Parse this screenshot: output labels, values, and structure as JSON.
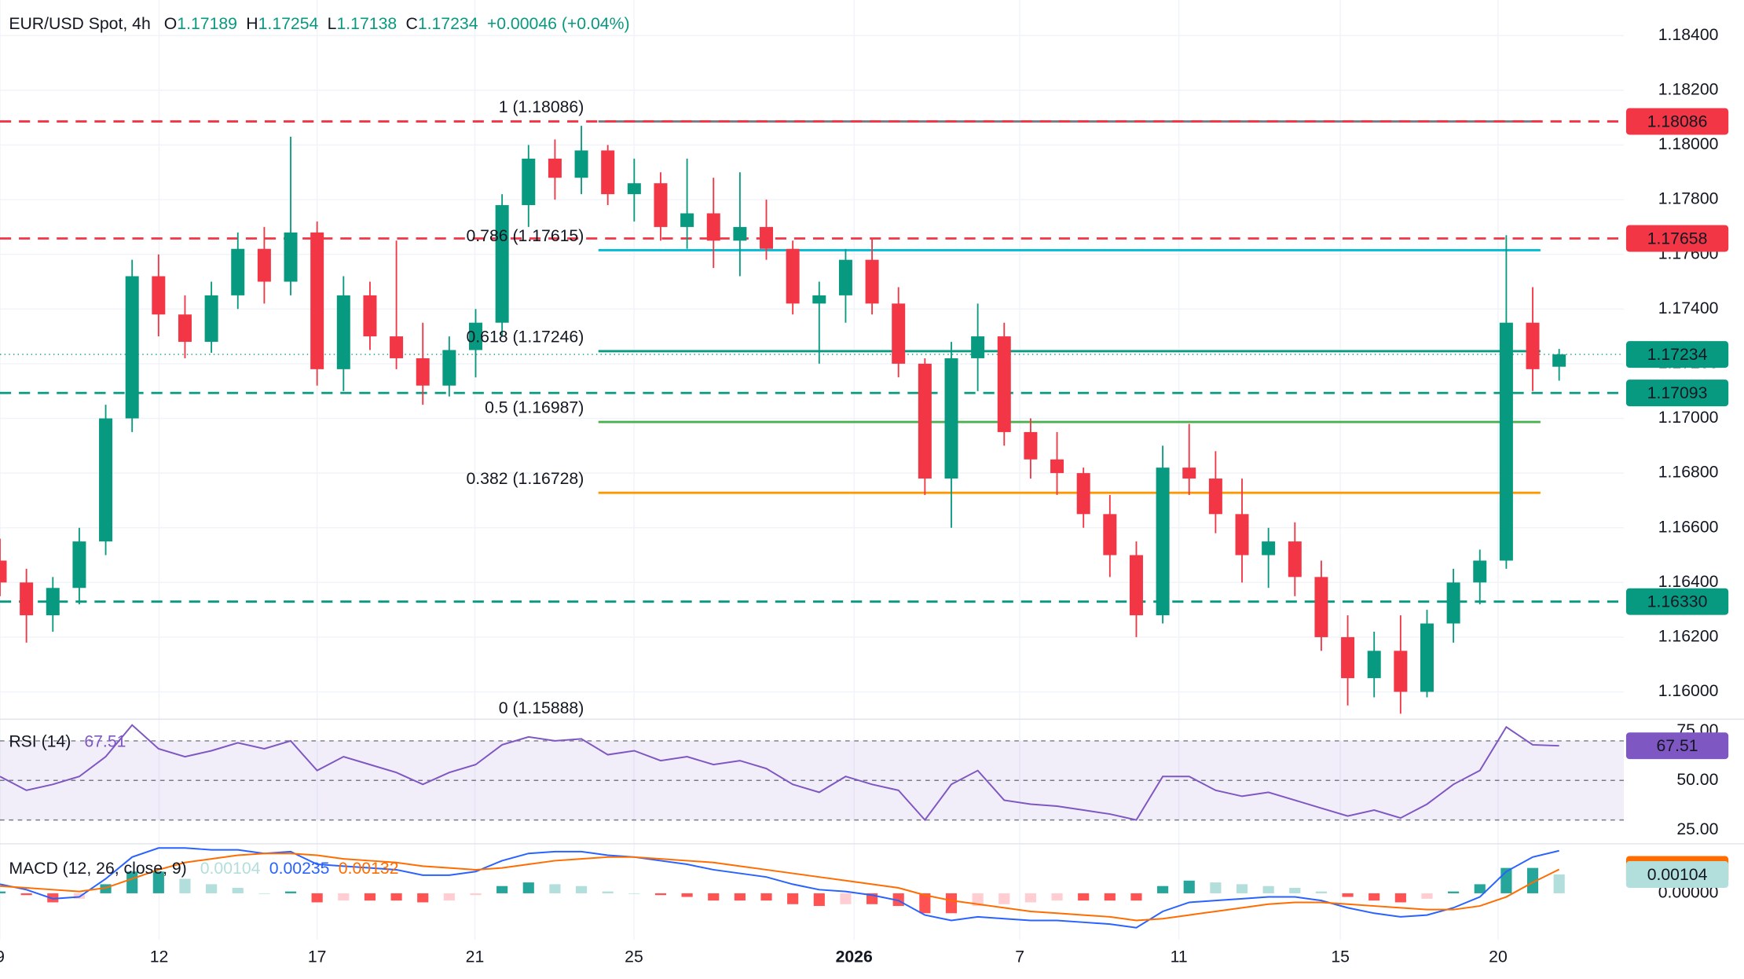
{
  "chart_data": [
    {
      "type": "candlestick",
      "title": "EUR/USD Spot, 4h",
      "ohlc_keys": [
        "O",
        "H",
        "L",
        "C"
      ],
      "change": "+0.00046 (+0.04%)",
      "up_color": "#089981",
      "down_color": "#f23645",
      "candles": [
        [
          1.1648,
          1.1656,
          1.1635,
          1.164
        ],
        [
          1.164,
          1.1645,
          1.1618,
          1.1628
        ],
        [
          1.1628,
          1.1642,
          1.1622,
          1.1638
        ],
        [
          1.1638,
          1.166,
          1.1632,
          1.1655
        ],
        [
          1.1655,
          1.1705,
          1.165,
          1.17
        ],
        [
          1.17,
          1.1758,
          1.1695,
          1.1752
        ],
        [
          1.1752,
          1.176,
          1.173,
          1.1738
        ],
        [
          1.1738,
          1.1745,
          1.1722,
          1.1728
        ],
        [
          1.1728,
          1.175,
          1.1724,
          1.1745
        ],
        [
          1.1745,
          1.1768,
          1.174,
          1.1762
        ],
        [
          1.1762,
          1.177,
          1.1742,
          1.175
        ],
        [
          1.175,
          1.1803,
          1.1745,
          1.1768
        ],
        [
          1.1768,
          1.1772,
          1.1712,
          1.1718
        ],
        [
          1.1718,
          1.1752,
          1.171,
          1.1745
        ],
        [
          1.1745,
          1.175,
          1.1725,
          1.173
        ],
        [
          1.173,
          1.1765,
          1.1718,
          1.1722
        ],
        [
          1.1722,
          1.1735,
          1.1705,
          1.1712
        ],
        [
          1.1712,
          1.173,
          1.1708,
          1.1725
        ],
        [
          1.1725,
          1.174,
          1.1715,
          1.1735
        ],
        [
          1.1735,
          1.1782,
          1.173,
          1.1778
        ],
        [
          1.1778,
          1.18,
          1.177,
          1.1795
        ],
        [
          1.1795,
          1.1802,
          1.178,
          1.1788
        ],
        [
          1.1788,
          1.1807,
          1.1782,
          1.1798
        ],
        [
          1.1798,
          1.18,
          1.1778,
          1.1782
        ],
        [
          1.1782,
          1.1795,
          1.1772,
          1.1786
        ],
        [
          1.1786,
          1.179,
          1.1765,
          1.177
        ],
        [
          1.177,
          1.1795,
          1.1762,
          1.1775
        ],
        [
          1.1775,
          1.1788,
          1.1755,
          1.1765
        ],
        [
          1.1765,
          1.179,
          1.1752,
          1.177
        ],
        [
          1.177,
          1.178,
          1.1758,
          1.1762
        ],
        [
          1.1762,
          1.1765,
          1.1738,
          1.1742
        ],
        [
          1.1742,
          1.175,
          1.172,
          1.1745
        ],
        [
          1.1745,
          1.1762,
          1.1735,
          1.1758
        ],
        [
          1.1758,
          1.1766,
          1.1738,
          1.1742
        ],
        [
          1.1742,
          1.1748,
          1.1715,
          1.172
        ],
        [
          1.172,
          1.1722,
          1.1672,
          1.1678
        ],
        [
          1.1678,
          1.1728,
          1.166,
          1.1722
        ],
        [
          1.1722,
          1.1742,
          1.171,
          1.173
        ],
        [
          1.173,
          1.1735,
          1.169,
          1.1695
        ],
        [
          1.1695,
          1.17,
          1.1678,
          1.1685
        ],
        [
          1.1685,
          1.1695,
          1.1672,
          1.168
        ],
        [
          1.168,
          1.1682,
          1.166,
          1.1665
        ],
        [
          1.1665,
          1.1672,
          1.1642,
          1.165
        ],
        [
          1.165,
          1.1655,
          1.162,
          1.1628
        ],
        [
          1.1628,
          1.169,
          1.1625,
          1.1682
        ],
        [
          1.1682,
          1.1698,
          1.1672,
          1.1678
        ],
        [
          1.1678,
          1.1688,
          1.1658,
          1.1665
        ],
        [
          1.1665,
          1.1678,
          1.164,
          1.165
        ],
        [
          1.165,
          1.166,
          1.1638,
          1.1655
        ],
        [
          1.1655,
          1.1662,
          1.1635,
          1.1642
        ],
        [
          1.1642,
          1.1648,
          1.1615,
          1.162
        ],
        [
          1.162,
          1.1628,
          1.1595,
          1.1605
        ],
        [
          1.1605,
          1.1622,
          1.1598,
          1.1615
        ],
        [
          1.1615,
          1.1628,
          1.1592,
          1.16
        ],
        [
          1.16,
          1.163,
          1.1598,
          1.1625
        ],
        [
          1.1625,
          1.1645,
          1.1618,
          1.164
        ],
        [
          1.164,
          1.1652,
          1.1632,
          1.1648
        ],
        [
          1.1648,
          1.1767,
          1.1645,
          1.1735
        ],
        [
          1.1735,
          1.1748,
          1.171,
          1.1718
        ],
        [
          1.17189,
          1.17254,
          1.17138,
          1.17234
        ]
      ],
      "xlim": [
        0,
        61.45
      ],
      "ylim": [
        1.15906,
        1.1853
      ],
      "grid": true,
      "yticks": [
        {
          "value": 1.184,
          "label": "1.18400"
        },
        {
          "value": 1.182,
          "label": "1.18200"
        },
        {
          "value": 1.18,
          "label": "1.18000"
        },
        {
          "value": 1.178,
          "label": "1.17800"
        },
        {
          "value": 1.176,
          "label": "1.17600"
        },
        {
          "value": 1.174,
          "label": "1.17400"
        },
        {
          "value": 1.172,
          "label": "1.17200"
        },
        {
          "value": 1.17,
          "label": "1.17000"
        },
        {
          "value": 1.168,
          "label": "1.16800"
        },
        {
          "value": 1.166,
          "label": "1.16600"
        },
        {
          "value": 1.164,
          "label": "1.16400"
        },
        {
          "value": 1.162,
          "label": "1.16200"
        },
        {
          "value": 1.16,
          "label": "1.16000"
        }
      ],
      "levels": [
        {
          "value": 1.18086,
          "label": "1.18086",
          "color": "#f23645",
          "style": "dashed"
        },
        {
          "value": 1.17658,
          "label": "1.17658",
          "color": "#f23645",
          "style": "dashed"
        },
        {
          "value": 1.17234,
          "label": "1.17234",
          "color": "#089981",
          "style": "dotted"
        },
        {
          "value": 1.17093,
          "label": "1.17093",
          "color": "#089981",
          "style": "dashed"
        },
        {
          "value": 1.1633,
          "label": "1.16330",
          "color": "#089981",
          "style": "dashed"
        }
      ],
      "fib_levels": [
        {
          "label": "1 (1.18086)",
          "value": 1.18086,
          "color": "#787b86"
        },
        {
          "label": "0.786 (1.17615)",
          "value": 1.17615,
          "color": "#00bcd4"
        },
        {
          "label": "0.618 (1.17246)",
          "value": 1.17246,
          "color": "#089981"
        },
        {
          "label": "0.5 (1.16987)",
          "value": 1.16987,
          "color": "#4caf50"
        },
        {
          "label": "0.382 (1.16728)",
          "value": 1.16728,
          "color": "#ff9800"
        },
        {
          "label": "0 (1.15888)",
          "value": 1.15888,
          "color": "#787b86"
        }
      ]
    },
    {
      "type": "rsi",
      "title": "RSI (14)",
      "color": "#7e57c2",
      "values": [
        52,
        45,
        48,
        52,
        62,
        78,
        66,
        62,
        65,
        69,
        66,
        70,
        55,
        62,
        58,
        54,
        48,
        54,
        58,
        68,
        72,
        70,
        71,
        63,
        65,
        60,
        62,
        58,
        60,
        56,
        48,
        44,
        52,
        48,
        45,
        30,
        48,
        55,
        40,
        38,
        37,
        35,
        33,
        30,
        52,
        52,
        45,
        42,
        44,
        40,
        36,
        32,
        35,
        31,
        38,
        48,
        55,
        77,
        68,
        67.51
      ],
      "xlim": [
        0,
        61.45
      ],
      "ylim": [
        18.8,
        80.1
      ],
      "yticks": [
        {
          "value": 75,
          "label": "75.00"
        },
        {
          "value": 50,
          "label": "50.00"
        },
        {
          "value": 25,
          "label": "25.00"
        }
      ],
      "levels": [
        70,
        50,
        30
      ]
    },
    {
      "type": "macd",
      "title": "MACD (12, 26, close, 9)",
      "histogram": {
        "colors": [
          "#26a69a",
          "#b2dfdb",
          "#ff5252",
          "#ffcdd2"
        ],
        "values": [
          0.0001,
          -0.0001,
          -0.0005,
          -0.0003,
          0.0005,
          0.0012,
          0.0012,
          0.0008,
          0.0005,
          0.0003,
          0,
          0.0001,
          -0.0005,
          -0.0004,
          -0.0004,
          -0.0004,
          -0.0005,
          -0.0004,
          -0.0001,
          0.0004,
          0.0006,
          0.0005,
          0.0004,
          0.0001,
          0,
          -0.0001,
          -0.0002,
          -0.0004,
          -0.0004,
          -0.0004,
          -0.0006,
          -0.0007,
          -0.0006,
          -0.0006,
          -0.0007,
          -0.0011,
          -0.0011,
          -0.0007,
          -0.0006,
          -0.0005,
          -0.0004,
          -0.0004,
          -0.0004,
          -0.0004,
          0.0004,
          0.0007,
          0.0006,
          0.0005,
          0.0004,
          0.0003,
          0.0001,
          -0.0002,
          -0.0004,
          -0.0005,
          -0.0003,
          0.0001,
          0.0005,
          0.0014,
          0.0014,
          0.00104
        ]
      },
      "macd": {
        "color": "#2962ff",
        "values": [
          0.0005,
          0.0002,
          -0.0003,
          -0.0002,
          0.0008,
          0.002,
          0.0025,
          0.0025,
          0.0024,
          0.0024,
          0.0022,
          0.0023,
          0.0016,
          0.0015,
          0.0014,
          0.0013,
          0.001,
          0.001,
          0.0012,
          0.0018,
          0.0022,
          0.0023,
          0.0023,
          0.0021,
          0.002,
          0.0018,
          0.0016,
          0.0013,
          0.0011,
          0.0009,
          0.0005,
          0.0002,
          0.0001,
          -0.0001,
          -0.0004,
          -0.0012,
          -0.0015,
          -0.0013,
          -0.0014,
          -0.0015,
          -0.0015,
          -0.0016,
          -0.0017,
          -0.0019,
          -0.001,
          -0.0005,
          -0.0004,
          -0.0003,
          -0.0002,
          -0.0002,
          -0.0004,
          -0.0008,
          -0.0011,
          -0.0013,
          -0.0012,
          -0.0008,
          -0.0002,
          0.0012,
          0.002,
          0.00235
        ]
      },
      "signal": {
        "color": "#ff6d00",
        "values": [
          0.0004,
          0.0003,
          0.0002,
          0.0001,
          0.0003,
          0.0008,
          0.0013,
          0.0017,
          0.0019,
          0.0021,
          0.0022,
          0.0022,
          0.0021,
          0.0019,
          0.0018,
          0.0017,
          0.0015,
          0.0014,
          0.0013,
          0.0014,
          0.0016,
          0.0018,
          0.0019,
          0.002,
          0.002,
          0.0019,
          0.0018,
          0.0017,
          0.0015,
          0.0013,
          0.0011,
          0.0009,
          0.0007,
          0.0005,
          0.0003,
          -0.0001,
          -0.0004,
          -0.0006,
          -0.0008,
          -0.001,
          -0.0011,
          -0.0012,
          -0.0013,
          -0.0015,
          -0.0014,
          -0.0012,
          -0.001,
          -0.0008,
          -0.0006,
          -0.0005,
          -0.0005,
          -0.0006,
          -0.0007,
          -0.0008,
          -0.0009,
          -0.0009,
          -0.0007,
          -0.0002,
          0.0006,
          0.00132
        ]
      },
      "xlim": [
        0,
        61.45
      ],
      "ylim": [
        -0.00258,
        0.00264
      ],
      "yticks": [
        {
          "value": 0,
          "label": "0.00000"
        }
      ],
      "xticks": [
        {
          "value": 0,
          "label": "9"
        },
        {
          "value": 6.02,
          "label": "12"
        },
        {
          "value": 12,
          "label": "17"
        },
        {
          "value": 17.97,
          "label": "21"
        },
        {
          "value": 23.99,
          "label": "25"
        },
        {
          "value": 32.32,
          "label": "2026"
        },
        {
          "value": 38.59,
          "label": "7"
        },
        {
          "value": 44.61,
          "label": "11"
        },
        {
          "value": 50.72,
          "label": "15"
        },
        {
          "value": 56.69,
          "label": "20"
        }
      ]
    }
  ]
}
